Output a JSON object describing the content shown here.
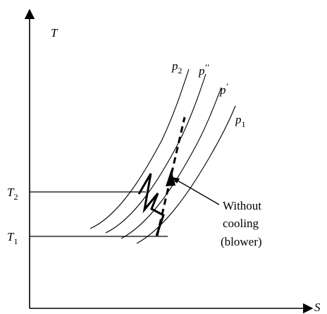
{
  "axes": {
    "y_label": "T",
    "x_label": "S"
  },
  "temperatures": {
    "t2": {
      "main": "T",
      "sub": "2"
    },
    "t1": {
      "main": "T",
      "sub": "1"
    }
  },
  "isobars": {
    "p2": {
      "main": "p",
      "sub": "2"
    },
    "p_dprime": {
      "main": "p",
      "sup": "’’"
    },
    "p_prime": {
      "main": "p",
      "sup": "’"
    },
    "p1": {
      "main": "p",
      "sub": "1"
    }
  },
  "annotation": {
    "lines": [
      "Without",
      "cooling",
      "(blower)"
    ]
  }
}
